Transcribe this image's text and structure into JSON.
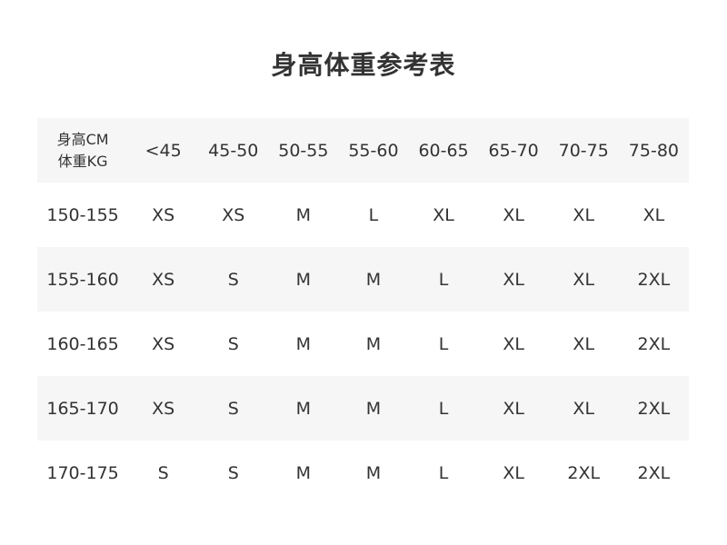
{
  "title": "身高体重参考表",
  "table": {
    "corner": [
      "身高CM",
      "体重KG"
    ],
    "weight_headers": [
      "<45",
      "45-50",
      "50-55",
      "55-60",
      "60-65",
      "65-70",
      "70-75",
      "75-80"
    ],
    "rows": [
      {
        "height": "150-155",
        "sizes": [
          "XS",
          "XS",
          "M",
          "L",
          "XL",
          "XL",
          "XL",
          "XL"
        ]
      },
      {
        "height": "155-160",
        "sizes": [
          "XS",
          "S",
          "M",
          "M",
          "L",
          "XL",
          "XL",
          "2XL"
        ]
      },
      {
        "height": "160-165",
        "sizes": [
          "XS",
          "S",
          "M",
          "M",
          "L",
          "XL",
          "XL",
          "2XL"
        ]
      },
      {
        "height": "165-170",
        "sizes": [
          "XS",
          "S",
          "M",
          "M",
          "L",
          "XL",
          "XL",
          "2XL"
        ]
      },
      {
        "height": "170-175",
        "sizes": [
          "S",
          "S",
          "M",
          "M",
          "L",
          "XL",
          "2XL",
          "2XL"
        ]
      }
    ]
  },
  "colors": {
    "text": "#333333",
    "stripe": "#f6f6f6",
    "background": "#ffffff"
  }
}
